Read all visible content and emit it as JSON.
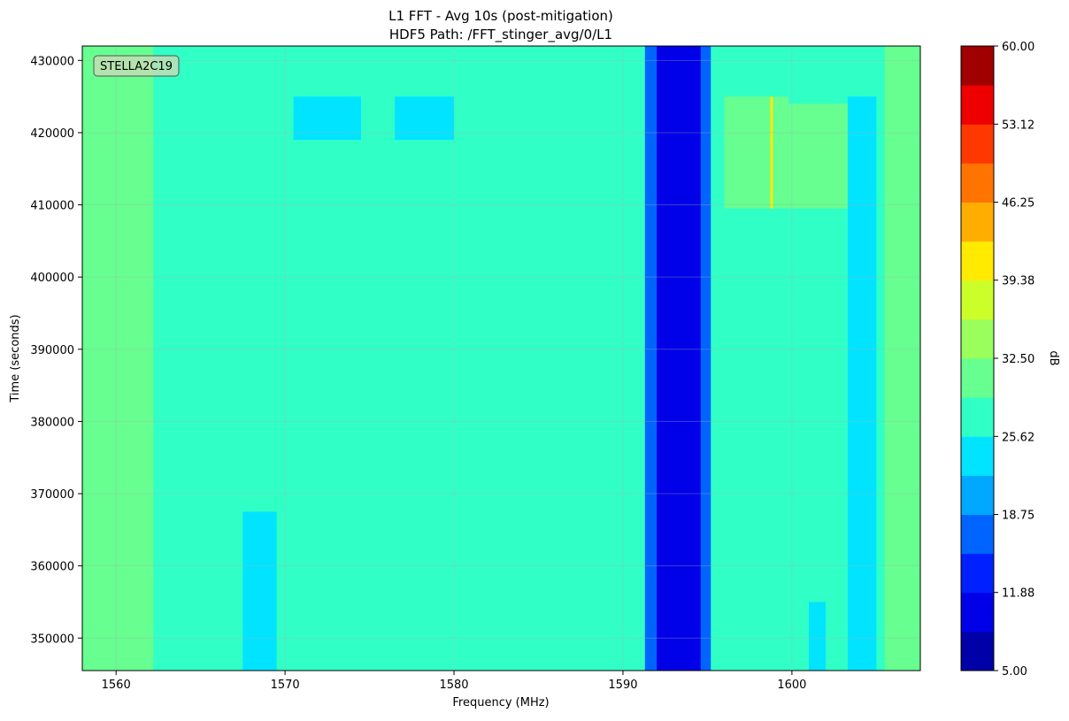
{
  "chart_data": {
    "type": "heatmap",
    "title": "L1 FFT - Avg 10s (post-mitigation)",
    "subtitle": "HDF5 Path: /FFT_stinger_avg/0/L1",
    "xlabel": "Frequency (MHz)",
    "ylabel": "Time (seconds)",
    "xlim": [
      1558,
      1607.6
    ],
    "ylim": [
      345500,
      432000
    ],
    "x_ticks": [
      1560,
      1570,
      1580,
      1590,
      1600
    ],
    "x_tick_labels": [
      "1560",
      "1570",
      "1580",
      "1590",
      "1600"
    ],
    "y_ticks": [
      350000,
      360000,
      370000,
      380000,
      390000,
      400000,
      410000,
      420000,
      430000
    ],
    "y_tick_labels": [
      "350000",
      "360000",
      "370000",
      "380000",
      "390000",
      "400000",
      "410000",
      "420000",
      "430000"
    ],
    "grid": true,
    "annotation": "STELLA2C19",
    "colorbar": {
      "label": "dB",
      "range": [
        5.0,
        60.0
      ],
      "ticks": [
        5.0,
        11.88,
        18.75,
        25.62,
        32.5,
        39.38,
        46.25,
        53.12,
        60.0
      ],
      "tick_labels": [
        "5.00",
        "11.88",
        "18.75",
        "25.62",
        "32.50",
        "39.38",
        "46.25",
        "53.12",
        "60.00"
      ],
      "levels": 16,
      "colors": [
        "#0000a8",
        "#0000e8",
        "#0020ff",
        "#0064ff",
        "#00a8ff",
        "#00e4ff",
        "#30ffc6",
        "#66ff90",
        "#9aff5c",
        "#ccff2a",
        "#ffea00",
        "#ffae00",
        "#ff7400",
        "#ff3800",
        "#ee0000",
        "#a00000"
      ]
    },
    "background_level_db": 28.5,
    "regions": [
      {
        "x": [
          1558,
          1562.2
        ],
        "y": [
          345500,
          432000
        ],
        "db": 31.5
      },
      {
        "x": [
          1591.3,
          1595.2
        ],
        "y": [
          345500,
          432000
        ],
        "db": 18.0
      },
      {
        "x": [
          1592.0,
          1594.6
        ],
        "y": [
          345500,
          432000
        ],
        "db": 10.0
      },
      {
        "x": [
          1596.0,
          1599.8
        ],
        "y": [
          409500,
          425000
        ],
        "db": 31.0
      },
      {
        "x": [
          1599.8,
          1604.0
        ],
        "y": [
          409500,
          424000
        ],
        "db": 31.0
      },
      {
        "x": [
          1570.5,
          1574.5
        ],
        "y": [
          419000,
          425000
        ],
        "db": 24.5
      },
      {
        "x": [
          1576.5,
          1580.0
        ],
        "y": [
          419000,
          425000
        ],
        "db": 24.5
      },
      {
        "x": [
          1567.5,
          1569.5
        ],
        "y": [
          345500,
          367500
        ],
        "db": 24.5
      },
      {
        "x": [
          1603.3,
          1605.0
        ],
        "y": [
          345500,
          425000
        ],
        "db": 24.5
      },
      {
        "x": [
          1601.0,
          1602.0
        ],
        "y": [
          345500,
          355000
        ],
        "db": 24.5
      },
      {
        "x": [
          1605.5,
          1607.6
        ],
        "y": [
          345500,
          432000
        ],
        "db": 30.5
      }
    ],
    "lines": [
      {
        "x": 1598.8,
        "y": [
          409500,
          425000
        ],
        "db": 42.0
      }
    ]
  }
}
